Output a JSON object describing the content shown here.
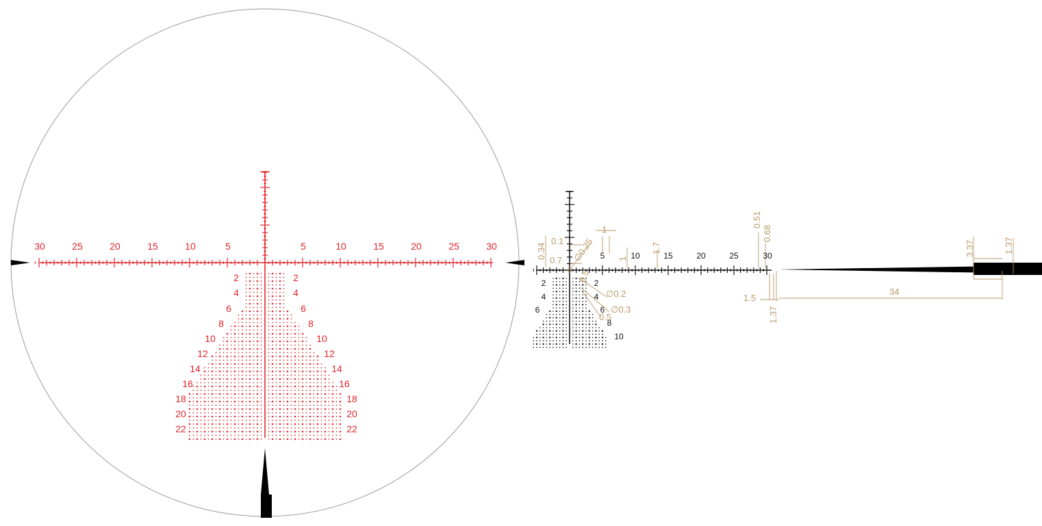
{
  "colors": {
    "reticle": "#e0242a",
    "detail": "#111111",
    "dimension": "#b8986a",
    "circle": "#9a9a9a",
    "background": "#ffffff"
  },
  "reticle_view": {
    "horizontal_labels": [
      "30",
      "25",
      "20",
      "15",
      "10",
      "5",
      "5",
      "10",
      "15",
      "20",
      "25",
      "30"
    ],
    "left_row_labels": [
      "2",
      "4",
      "6",
      "8",
      "10",
      "12",
      "14",
      "16",
      "18",
      "20",
      "22"
    ],
    "right_row_labels": [
      "2",
      "4",
      "6",
      "8",
      "10",
      "12",
      "14",
      "16",
      "18",
      "20",
      "22"
    ]
  },
  "detail_view": {
    "scale_labels": [
      "5",
      "10",
      "15",
      "20",
      "25",
      "30"
    ],
    "left_row_labels": [
      "2",
      "4",
      "6"
    ],
    "right_row_labels": [
      "2",
      "4",
      "6",
      "8",
      "10"
    ]
  },
  "dimensions": [
    "0.34",
    "0.1",
    "0.7",
    "∅0.25",
    "1",
    "1",
    "1.7",
    "∅0.2",
    "∅0.3",
    "0.5",
    "0.5",
    "0.51",
    "0.68",
    "1.5",
    "1.37",
    "34",
    "3.37",
    "1.37"
  ]
}
